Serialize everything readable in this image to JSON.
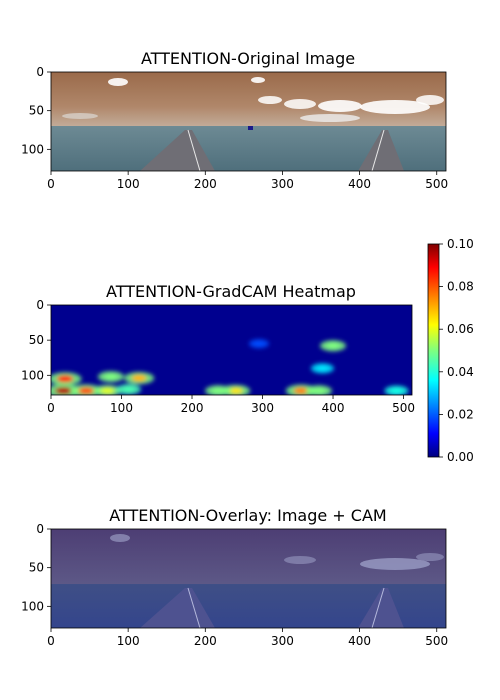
{
  "chart_data": [
    {
      "type": "image",
      "title": "ATTENTION-Original Image",
      "x_ticks": [
        0,
        100,
        200,
        300,
        400,
        500
      ],
      "y_ticks": [
        0,
        50,
        100
      ],
      "xlim": [
        0,
        512
      ],
      "ylim": [
        128,
        0
      ]
    },
    {
      "type": "heatmap",
      "title": "ATTENTION-GradCAM Heatmap",
      "x_ticks": [
        0,
        100,
        200,
        300,
        400,
        500
      ],
      "y_ticks": [
        0,
        50,
        100
      ],
      "xlim": [
        0,
        512
      ],
      "ylim": [
        128,
        0
      ],
      "colormap": "jet",
      "colorbar": {
        "range": [
          0.0,
          0.1
        ],
        "tick_labels": [
          "0.00",
          "0.02",
          "0.04",
          "0.06",
          "0.08",
          "0.10"
        ]
      },
      "hotspots": [
        {
          "x": 20,
          "y": 105,
          "value": 0.085
        },
        {
          "x": 18,
          "y": 122,
          "value": 0.095
        },
        {
          "x": 50,
          "y": 122,
          "value": 0.08
        },
        {
          "x": 80,
          "y": 122,
          "value": 0.06
        },
        {
          "x": 125,
          "y": 104,
          "value": 0.07
        },
        {
          "x": 85,
          "y": 102,
          "value": 0.05
        },
        {
          "x": 110,
          "y": 120,
          "value": 0.045
        },
        {
          "x": 262,
          "y": 122,
          "value": 0.065
        },
        {
          "x": 237,
          "y": 122,
          "value": 0.05
        },
        {
          "x": 355,
          "y": 122,
          "value": 0.075
        },
        {
          "x": 380,
          "y": 122,
          "value": 0.05
        },
        {
          "x": 400,
          "y": 58,
          "value": 0.05
        },
        {
          "x": 385,
          "y": 90,
          "value": 0.035
        },
        {
          "x": 490,
          "y": 122,
          "value": 0.04
        },
        {
          "x": 295,
          "y": 55,
          "value": 0.02
        }
      ]
    },
    {
      "type": "image",
      "title": "ATTENTION-Overlay: Image + CAM",
      "x_ticks": [
        0,
        100,
        200,
        300,
        400,
        500
      ],
      "y_ticks": [
        0,
        50,
        100
      ],
      "xlim": [
        0,
        512
      ],
      "ylim": [
        128,
        0
      ]
    }
  ]
}
